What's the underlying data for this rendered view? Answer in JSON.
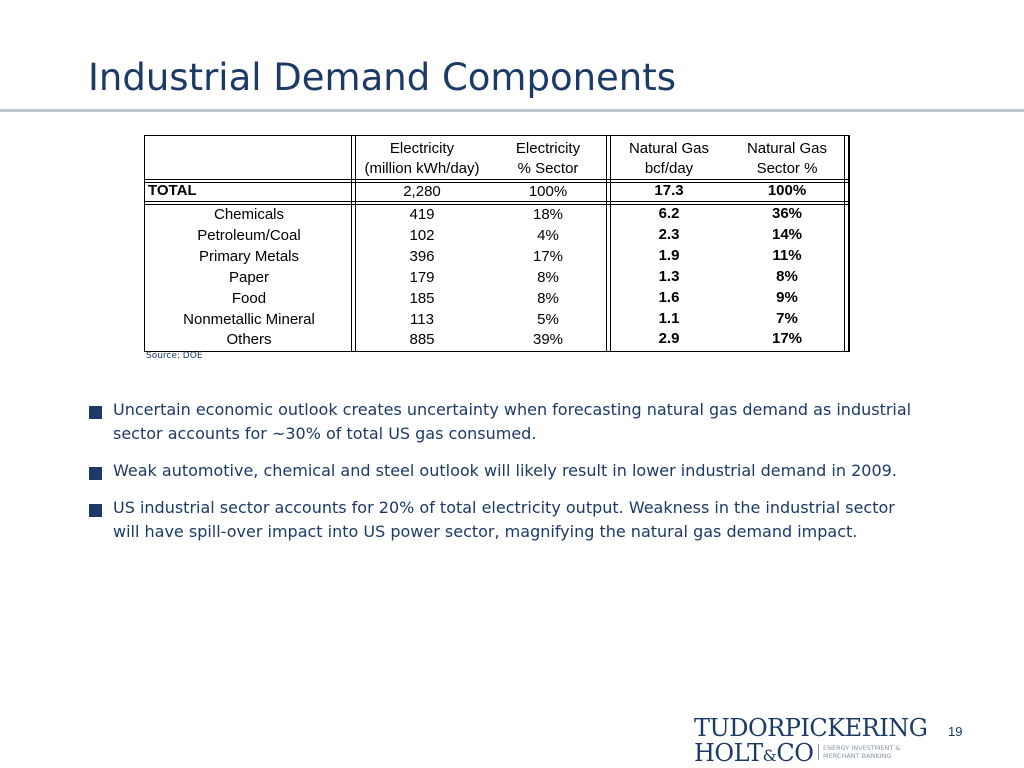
{
  "title": "Industrial Demand Components",
  "table": {
    "headers": [
      {
        "line1": "Electricity",
        "line2": "(million kWh/day)"
      },
      {
        "line1": "Electricity",
        "line2": "% Sector"
      },
      {
        "line1": "Natural Gas",
        "line2": "bcf/day"
      },
      {
        "line1": "Natural Gas",
        "line2": "Sector %"
      }
    ],
    "total": {
      "label": "TOTAL",
      "values": [
        "2,280",
        "100%",
        "17.3",
        "100%"
      ]
    },
    "rows": [
      {
        "label": "Chemicals",
        "values": [
          "419",
          "18%",
          "6.2",
          "36%"
        ]
      },
      {
        "label": "Petroleum/Coal",
        "values": [
          "102",
          "4%",
          "2.3",
          "14%"
        ]
      },
      {
        "label": "Primary Metals",
        "values": [
          "396",
          "17%",
          "1.9",
          "11%"
        ]
      },
      {
        "label": "Paper",
        "values": [
          "179",
          "8%",
          "1.3",
          "8%"
        ]
      },
      {
        "label": "Food",
        "values": [
          "185",
          "8%",
          "1.6",
          "9%"
        ]
      },
      {
        "label": "Nonmetallic Mineral",
        "values": [
          "113",
          "5%",
          "1.1",
          "7%"
        ]
      },
      {
        "label": "Others",
        "values": [
          "885",
          "39%",
          "2.9",
          "17%"
        ]
      }
    ]
  },
  "source": "Source:  DOE",
  "bullets": [
    "Uncertain economic outlook creates uncertainty when forecasting natural gas demand as industrial sector accounts for ~30% of total US gas consumed.",
    "Weak automotive, chemical and steel outlook will likely result in lower industrial demand in 2009.",
    "US industrial sector accounts for 20% of total electricity output.  Weakness in the industrial sector will have spill-over impact into US power sector, magnifying the natural gas demand impact."
  ],
  "logo": {
    "line1_a": "TUDOR",
    "line1_b": "PICKERING",
    "line2_a": "HOLT",
    "line2_amp": "&",
    "line2_b": "CO",
    "tagline1": "ENERGY INVESTMENT &",
    "tagline2": "MERCHANT BANKING"
  },
  "page_number": "19",
  "colors": {
    "title": "#1b3a66",
    "rule": "#bfc5cd",
    "bullet": "#1b3a66"
  }
}
